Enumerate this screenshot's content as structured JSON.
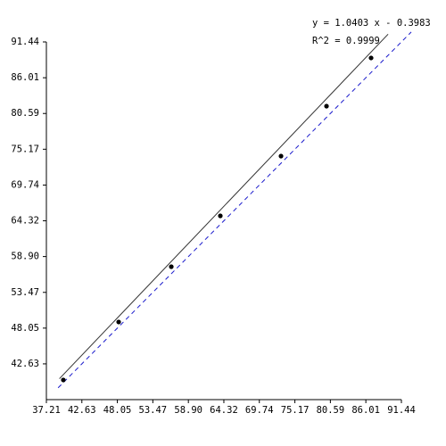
{
  "chart_data": {
    "type": "scatter",
    "x": [
      39.8,
      48.25,
      56.29,
      63.78,
      73.05,
      80.0,
      86.81
    ],
    "series": [
      {
        "color": "#000000",
        "values": [
          40.19,
          48.98,
          57.36,
          65.07,
          74.13,
          81.7,
          89.01
        ]
      }
    ],
    "xlim": [
      37.21,
      91.44
    ],
    "ylim": [
      37.21,
      91.44
    ],
    "xticks": [
      37.21,
      42.63,
      48.05,
      53.47,
      {
        "value": 58.9,
        "label": "58.90"
      },
      64.32,
      69.74,
      75.17,
      80.59,
      86.01,
      91.44
    ],
    "yticks": [
      42.63,
      48.05,
      53.47,
      {
        "value": 58.9,
        "label": "58.90"
      },
      64.32,
      69.74,
      75.17,
      80.59,
      86.01,
      91.44
    ],
    "regression": {
      "slope": 1.0403,
      "intercept": -0.3983,
      "color": "#333333",
      "equation": "y = 1.0403 x - 0.3983",
      "r2": 0.9999,
      "r2_label": "R^2 = 0.9999"
    },
    "identity_line": true,
    "identity_color": "#1a1acc",
    "grid": false
  }
}
